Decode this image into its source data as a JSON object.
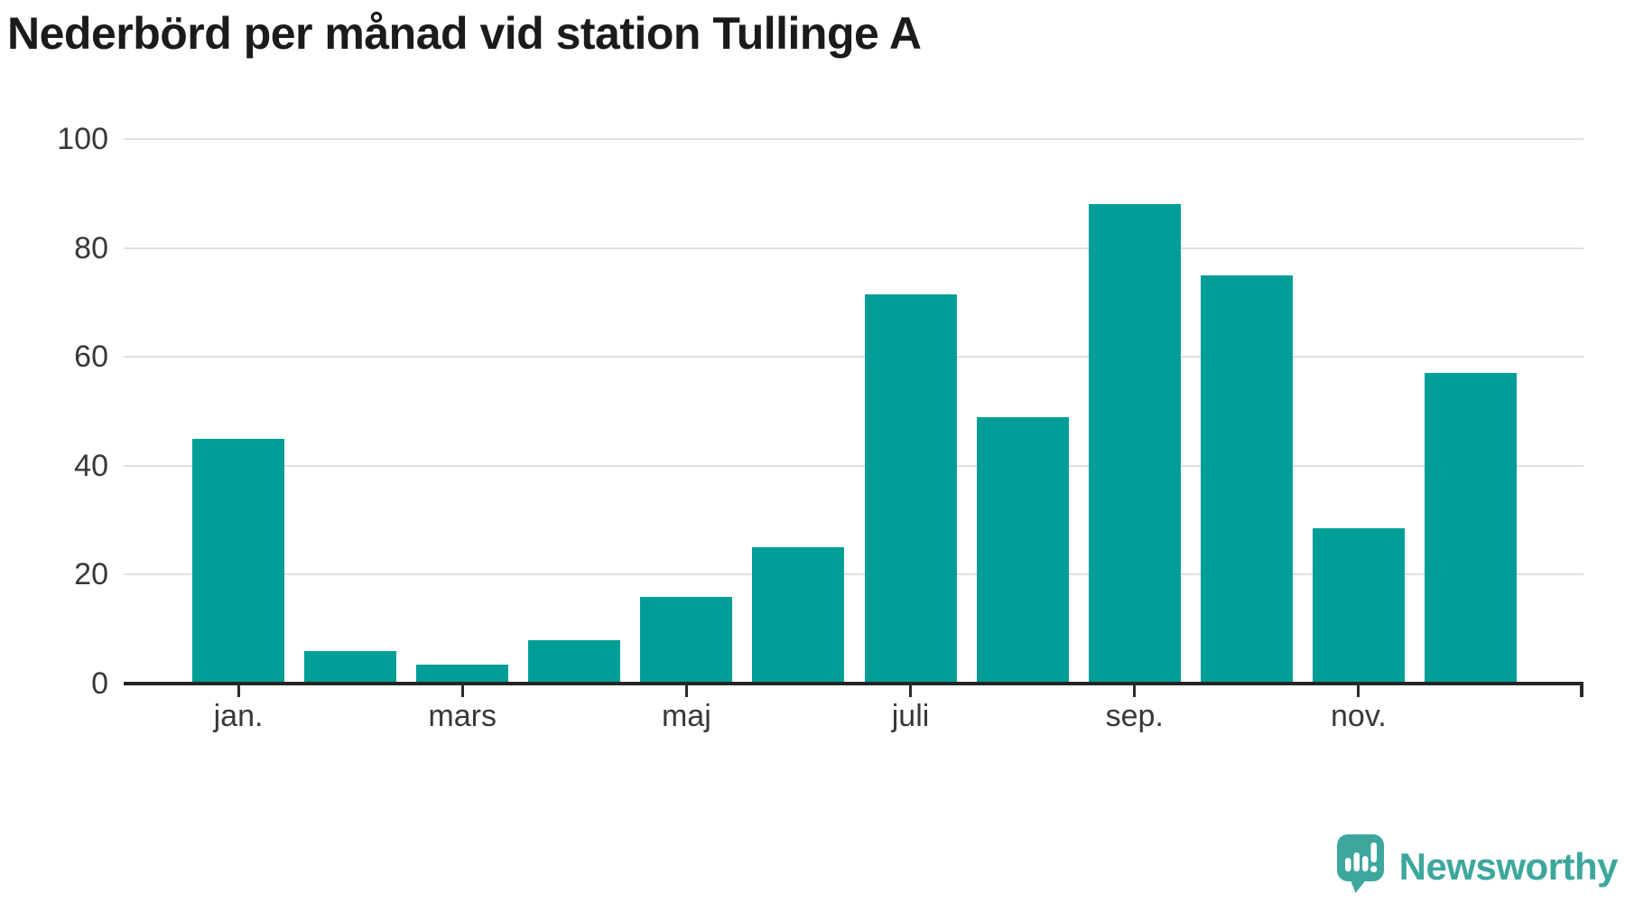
{
  "title": "Nederbörd per månad vid station Tullinge A",
  "colors": {
    "bar": "#009E97",
    "grid": "#e0e0e0",
    "axis": "#252525",
    "tick_text": "#383838",
    "title_text": "#1b1b1b",
    "brand_teal": "#3DA79E"
  },
  "chart_data": {
    "type": "bar",
    "title": "Nederbörd per månad vid station Tullinge A",
    "categories": [
      "jan.",
      "",
      "mars",
      "",
      "maj",
      "",
      "juli",
      "",
      "sep.",
      "",
      "nov.",
      ""
    ],
    "values": [
      45,
      6,
      3.5,
      8,
      16,
      25,
      71.5,
      49,
      88,
      75,
      28.5,
      57
    ],
    "x_ticks": [
      {
        "pos": 0,
        "label": "jan."
      },
      {
        "pos": 2,
        "label": "mars"
      },
      {
        "pos": 4,
        "label": "maj"
      },
      {
        "pos": 6,
        "label": "juli"
      },
      {
        "pos": 8,
        "label": "sep."
      },
      {
        "pos": 10,
        "label": "nov."
      }
    ],
    "y_ticks": [
      0,
      20,
      40,
      60,
      80,
      100
    ],
    "ylim": [
      0,
      100
    ],
    "xlabel": "",
    "ylabel": "",
    "grid": true,
    "legend": "none",
    "bar_color": "#009E97"
  },
  "footer": {
    "brand_name": "Newsworthy",
    "icon": "newsworthy-logo-icon"
  }
}
